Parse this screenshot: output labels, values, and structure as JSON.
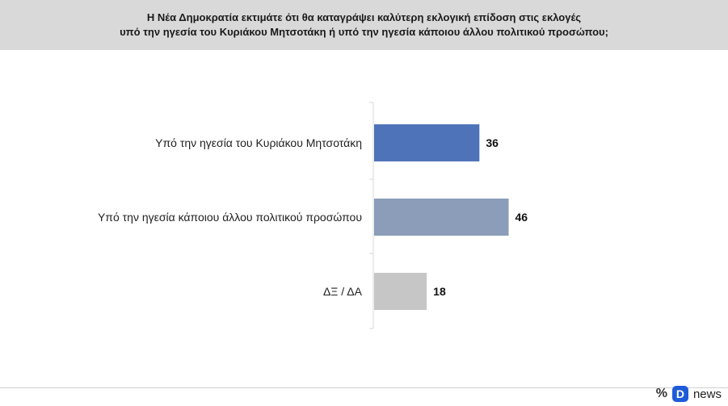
{
  "header": {
    "line1": "Η Νέα Δημοκρατία εκτιμάτε ότι θα καταγράψει καλύτερη εκλογική επίδοση στις εκλογές",
    "line2": "υπό την ηγεσία του Κυριάκου Μητσοτάκη ή υπό την ηγεσία κάποιου άλλου πολιτικού προσώπου;"
  },
  "chart_data": {
    "type": "bar",
    "orientation": "horizontal",
    "categories": [
      "Υπό την ηγεσία του Κυριάκου Μητσοτάκη",
      "Υπό την ηγεσία κάποιου άλλου πολιτικού προσώπου",
      "ΔΞ / ΔΑ"
    ],
    "values": [
      36,
      46,
      18
    ],
    "colors": [
      "#4f73b8",
      "#8b9db8",
      "#c6c6c6"
    ],
    "xlim": [
      0,
      100
    ],
    "grid": false,
    "legend": "none"
  },
  "footer": {
    "percent_icon": "percent-icon",
    "brand_letter": "D",
    "brand_text": "news"
  }
}
